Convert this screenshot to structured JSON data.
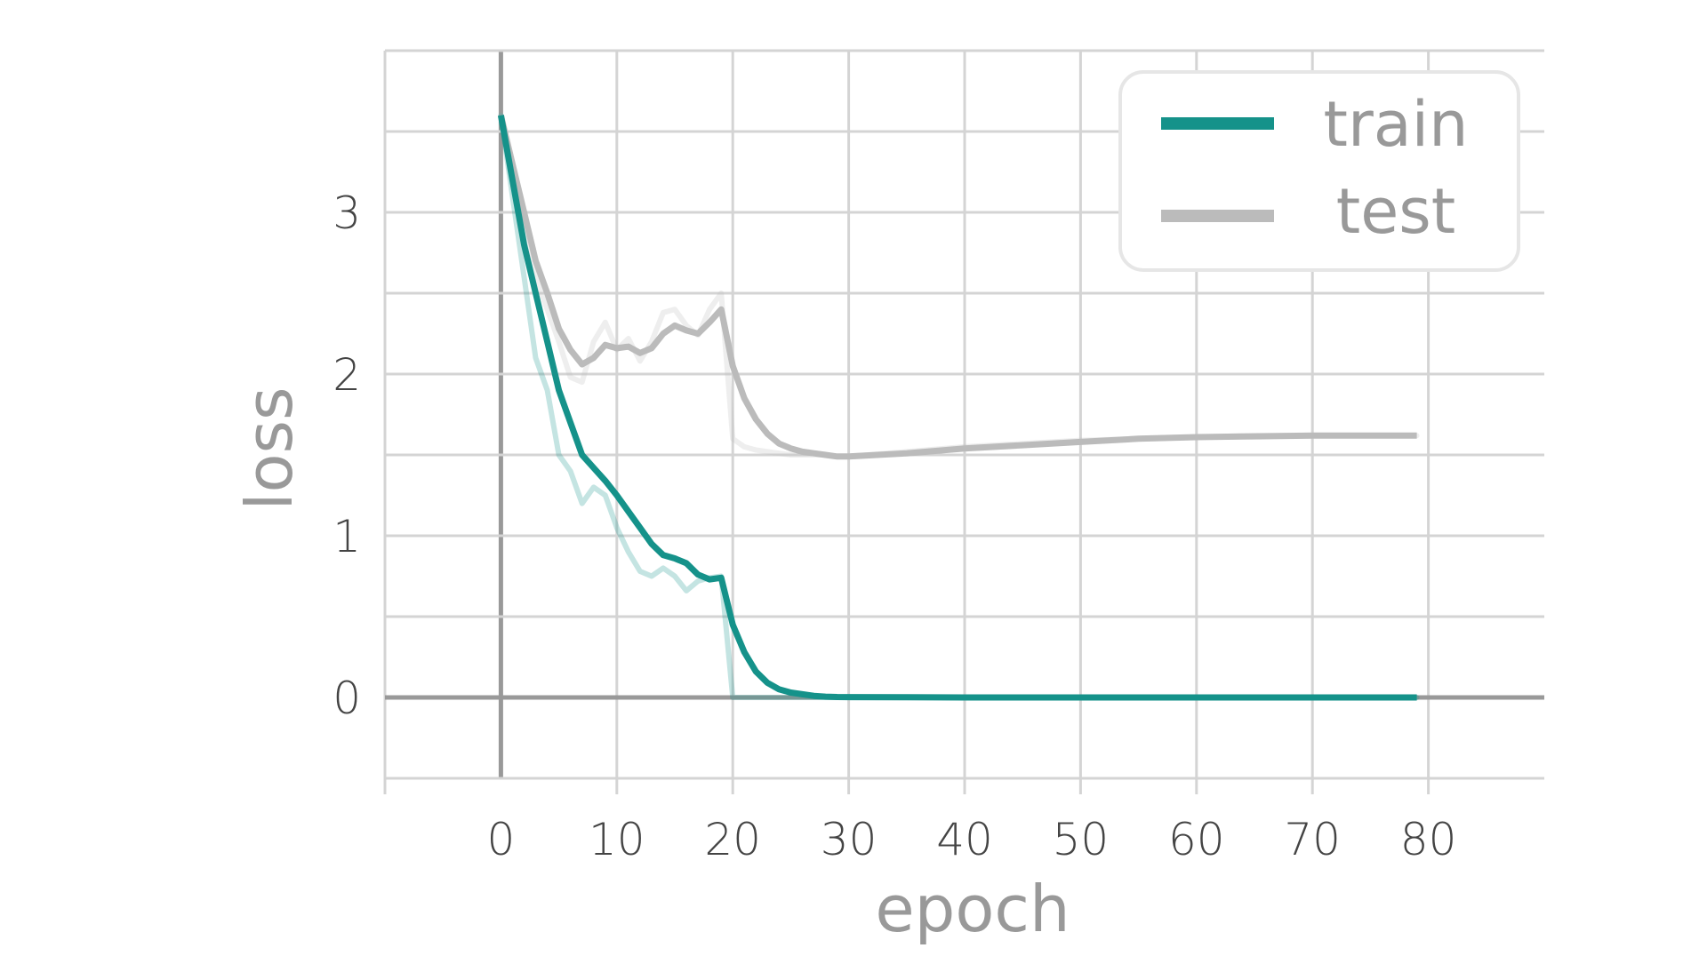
{
  "chart_data": {
    "type": "line",
    "title": "",
    "xlabel": "epoch",
    "ylabel": "loss",
    "xlim": [
      -10,
      90
    ],
    "ylim": [
      -0.5,
      4.0
    ],
    "xticks": [
      0,
      10,
      20,
      30,
      40,
      50,
      60,
      70,
      80
    ],
    "yticks": [
      0,
      1,
      2,
      3
    ],
    "xtick_labels": [
      "0",
      "10",
      "20",
      "30",
      "40",
      "50",
      "60",
      "70",
      "80"
    ],
    "ytick_labels": [
      "0",
      "1",
      "2",
      "3"
    ],
    "grid": true,
    "legend": {
      "position": "top-right"
    },
    "colors": {
      "train": "#15928a",
      "test": "#bbbbbb",
      "grid": "#d4d4d4",
      "zero_axis": "#999999"
    },
    "series": [
      {
        "name": "train",
        "color": "#15928a",
        "x": [
          0,
          1,
          2,
          3,
          4,
          5,
          6,
          7,
          8,
          9,
          10,
          11,
          12,
          13,
          14,
          15,
          16,
          17,
          18,
          19,
          20,
          21,
          22,
          23,
          24,
          25,
          26,
          27,
          28,
          29,
          30,
          35,
          40,
          45,
          50,
          55,
          60,
          65,
          70,
          75,
          79
        ],
        "values": [
          3.6,
          3.2,
          2.8,
          2.5,
          2.2,
          1.9,
          1.7,
          1.5,
          1.42,
          1.34,
          1.25,
          1.15,
          1.05,
          0.95,
          0.88,
          0.86,
          0.83,
          0.76,
          0.73,
          0.74,
          0.45,
          0.28,
          0.16,
          0.09,
          0.05,
          0.03,
          0.02,
          0.01,
          0.005,
          0.003,
          0.002,
          0.001,
          0.0,
          0.0,
          0.0,
          0.0,
          0.0,
          0.0,
          0.0,
          0.0,
          0.0
        ],
        "raw_values": [
          3.6,
          3.1,
          2.6,
          2.1,
          1.9,
          1.5,
          1.4,
          1.2,
          1.3,
          1.25,
          1.05,
          0.9,
          0.78,
          0.75,
          0.8,
          0.75,
          0.66,
          0.72,
          0.74,
          0.75,
          0.0,
          0.0,
          0.0,
          0.0,
          0.0,
          0.0,
          0.0,
          0.0,
          0.0,
          0.0,
          0.0,
          0.0,
          0.0,
          0.0,
          0.0,
          0.0,
          0.0,
          0.0,
          0.0,
          0.0,
          0.0
        ]
      },
      {
        "name": "test",
        "color": "#bbbbbb",
        "x": [
          0,
          1,
          2,
          3,
          4,
          5,
          6,
          7,
          8,
          9,
          10,
          11,
          12,
          13,
          14,
          15,
          16,
          17,
          18,
          19,
          20,
          21,
          22,
          23,
          24,
          25,
          26,
          27,
          28,
          29,
          30,
          35,
          40,
          45,
          50,
          55,
          60,
          65,
          70,
          75,
          79
        ],
        "values": [
          3.6,
          3.3,
          3.0,
          2.7,
          2.5,
          2.28,
          2.15,
          2.06,
          2.1,
          2.18,
          2.16,
          2.17,
          2.13,
          2.16,
          2.25,
          2.3,
          2.27,
          2.25,
          2.32,
          2.4,
          2.05,
          1.85,
          1.72,
          1.63,
          1.57,
          1.54,
          1.52,
          1.51,
          1.5,
          1.49,
          1.49,
          1.51,
          1.54,
          1.56,
          1.58,
          1.6,
          1.61,
          1.615,
          1.62,
          1.62,
          1.62
        ],
        "raw_values": [
          3.6,
          3.2,
          2.9,
          2.6,
          2.4,
          2.2,
          1.98,
          1.95,
          2.2,
          2.32,
          2.15,
          2.22,
          2.08,
          2.2,
          2.38,
          2.4,
          2.3,
          2.24,
          2.4,
          2.5,
          1.6,
          1.55,
          1.53,
          1.52,
          1.51,
          1.5,
          1.5,
          1.5,
          1.5,
          1.49,
          1.49,
          1.52,
          1.55,
          1.57,
          1.59,
          1.6,
          1.61,
          1.62,
          1.62,
          1.62,
          1.62
        ]
      }
    ]
  }
}
